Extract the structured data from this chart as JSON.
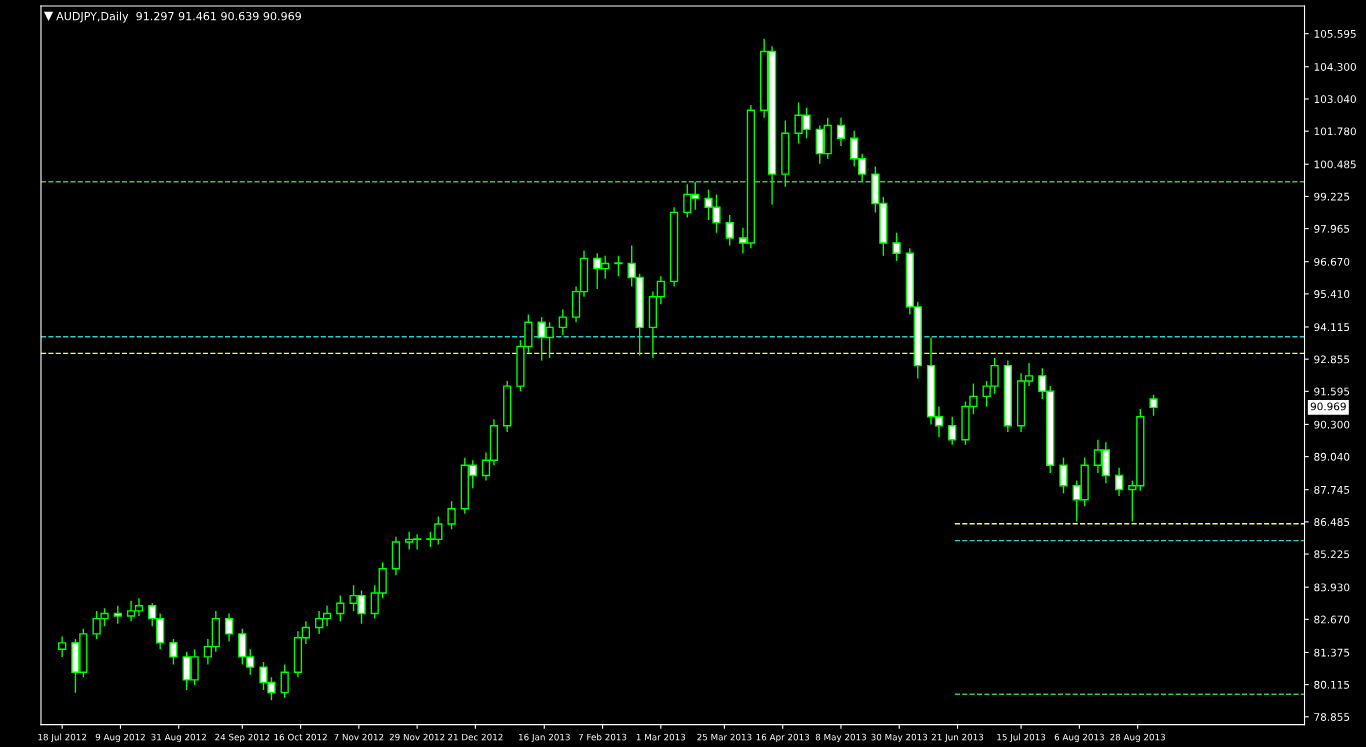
{
  "chart_data": {
    "type": "candlestick",
    "title": "AUDJPY,Daily  91.297 91.461 90.639 90.969",
    "color": "#00ff00",
    "x": [
      "2012-07-18",
      "2012-07-23",
      "2012-07-26",
      "2012-07-31",
      "2012-08-03",
      "2012-08-08",
      "2012-08-13",
      "2012-08-16",
      "2012-08-21",
      "2012-08-24",
      "2012-08-29",
      "2012-09-03",
      "2012-09-06",
      "2012-09-11",
      "2012-09-14",
      "2012-09-19",
      "2012-09-24",
      "2012-09-27",
      "2012-10-02",
      "2012-10-05",
      "2012-10-10",
      "2012-10-15",
      "2012-10-18",
      "2012-10-23",
      "2012-10-26",
      "2012-10-31",
      "2012-11-05",
      "2012-11-08",
      "2012-11-13",
      "2012-11-16",
      "2012-11-21",
      "2012-11-26",
      "2012-11-29",
      "2012-12-04",
      "2012-12-07",
      "2012-12-12",
      "2012-12-17",
      "2012-12-20",
      "2012-12-25",
      "2012-12-28",
      "2013-01-02",
      "2013-01-07",
      "2013-01-10",
      "2013-01-15",
      "2013-01-18",
      "2013-01-23",
      "2013-01-28",
      "2013-01-31",
      "2013-02-05",
      "2013-02-08",
      "2013-02-13",
      "2013-02-18",
      "2013-02-21",
      "2013-02-26",
      "2013-03-01",
      "2013-03-06",
      "2013-03-11",
      "2013-03-14",
      "2013-03-19",
      "2013-03-22",
      "2013-03-27",
      "2013-04-01",
      "2013-04-04",
      "2013-04-09",
      "2013-04-12",
      "2013-04-17",
      "2013-04-22",
      "2013-04-25",
      "2013-04-30",
      "2013-05-03",
      "2013-05-08",
      "2013-05-13",
      "2013-05-16",
      "2013-05-21",
      "2013-05-24",
      "2013-05-29",
      "2013-06-03",
      "2013-06-06",
      "2013-06-11",
      "2013-06-14",
      "2013-06-19",
      "2013-06-24",
      "2013-06-27",
      "2013-07-02",
      "2013-07-05",
      "2013-07-10",
      "2013-07-15",
      "2013-07-18",
      "2013-07-23",
      "2013-07-26",
      "2013-07-31",
      "2013-08-05",
      "2013-08-08",
      "2013-08-13",
      "2013-08-16",
      "2013-08-21",
      "2013-08-26",
      "2013-08-29",
      "2013-09-03"
    ],
    "ohlc": [
      [
        81.5,
        82.0,
        81.2,
        81.75
      ],
      [
        81.75,
        81.9,
        79.8,
        80.6
      ],
      [
        80.6,
        82.3,
        80.4,
        82.1
      ],
      [
        82.1,
        83.0,
        81.9,
        82.7
      ],
      [
        82.7,
        83.1,
        82.4,
        82.9
      ],
      [
        82.9,
        83.2,
        82.5,
        82.8
      ],
      [
        82.8,
        83.4,
        82.6,
        83.0
      ],
      [
        83.0,
        83.5,
        82.8,
        83.2
      ],
      [
        83.2,
        83.3,
        82.4,
        82.7
      ],
      [
        82.7,
        82.9,
        81.5,
        81.75
      ],
      [
        81.75,
        81.9,
        80.9,
        81.2
      ],
      [
        81.2,
        81.4,
        79.9,
        80.3
      ],
      [
        80.3,
        81.5,
        80.1,
        81.2
      ],
      [
        81.2,
        81.9,
        80.9,
        81.6
      ],
      [
        81.6,
        83.0,
        81.4,
        82.7
      ],
      [
        82.7,
        82.9,
        81.8,
        82.1
      ],
      [
        82.1,
        82.3,
        80.9,
        81.2
      ],
      [
        81.2,
        81.5,
        80.5,
        80.8
      ],
      [
        80.8,
        81.0,
        79.9,
        80.2
      ],
      [
        80.2,
        80.4,
        79.5,
        79.8
      ],
      [
        79.8,
        80.9,
        79.6,
        80.6
      ],
      [
        80.6,
        82.2,
        80.4,
        81.95
      ],
      [
        81.95,
        82.6,
        81.7,
        82.35
      ],
      [
        82.35,
        83.0,
        82.1,
        82.7
      ],
      [
        82.7,
        83.2,
        82.4,
        82.9
      ],
      [
        82.9,
        83.6,
        82.6,
        83.3
      ],
      [
        83.3,
        84.0,
        83.0,
        83.6
      ],
      [
        83.6,
        83.8,
        82.5,
        82.9
      ],
      [
        82.9,
        84.0,
        82.7,
        83.7
      ],
      [
        83.7,
        84.9,
        83.5,
        84.65
      ],
      [
        84.65,
        85.9,
        84.4,
        85.7
      ],
      [
        85.7,
        86.1,
        85.4,
        85.8
      ],
      [
        85.8,
        86.0,
        85.4,
        85.8
      ],
      [
        85.8,
        86.1,
        85.5,
        85.8
      ],
      [
        85.8,
        86.7,
        85.6,
        86.4
      ],
      [
        86.4,
        87.3,
        86.2,
        87.0
      ],
      [
        87.0,
        89.0,
        86.8,
        88.7
      ],
      [
        88.7,
        88.9,
        87.8,
        88.3
      ],
      [
        88.3,
        89.2,
        88.1,
        88.9
      ],
      [
        88.9,
        90.5,
        88.7,
        90.25
      ],
      [
        90.25,
        92.0,
        90.0,
        91.8
      ],
      [
        91.8,
        93.6,
        91.6,
        93.35
      ],
      [
        93.35,
        94.6,
        93.1,
        94.3
      ],
      [
        94.3,
        94.5,
        92.8,
        93.7
      ],
      [
        93.7,
        94.3,
        92.9,
        94.1
      ],
      [
        94.1,
        94.8,
        93.8,
        94.5
      ],
      [
        94.5,
        95.7,
        94.3,
        95.5
      ],
      [
        95.5,
        97.1,
        95.3,
        96.8
      ],
      [
        96.8,
        97.0,
        95.6,
        96.4
      ],
      [
        96.4,
        96.9,
        96.0,
        96.6
      ],
      [
        96.6,
        96.9,
        96.1,
        96.6
      ],
      [
        96.6,
        97.3,
        95.7,
        96.05
      ],
      [
        96.05,
        96.2,
        93.0,
        94.1
      ],
      [
        94.1,
        95.5,
        92.9,
        95.3
      ],
      [
        95.3,
        96.1,
        95.0,
        95.9
      ],
      [
        95.9,
        98.8,
        95.7,
        98.6
      ],
      [
        98.6,
        99.7,
        98.4,
        99.3
      ],
      [
        99.3,
        99.8,
        98.7,
        99.15
      ],
      [
        99.15,
        99.5,
        98.3,
        98.8
      ],
      [
        98.8,
        99.3,
        97.8,
        98.2
      ],
      [
        98.2,
        98.5,
        97.3,
        97.6
      ],
      [
        97.6,
        98.0,
        97.0,
        97.4
      ],
      [
        97.4,
        102.8,
        97.2,
        102.6
      ],
      [
        102.6,
        105.4,
        102.3,
        104.9
      ],
      [
        104.9,
        105.1,
        98.9,
        100.1
      ],
      [
        100.1,
        102.2,
        99.6,
        101.7
      ],
      [
        101.7,
        102.9,
        101.3,
        102.4
      ],
      [
        102.4,
        102.7,
        101.5,
        101.85
      ],
      [
        101.85,
        102.0,
        100.5,
        100.9
      ],
      [
        100.9,
        102.3,
        100.7,
        102.0
      ],
      [
        102.0,
        102.3,
        101.2,
        101.5
      ],
      [
        101.5,
        101.8,
        100.4,
        100.7
      ],
      [
        100.7,
        100.9,
        99.8,
        100.1
      ],
      [
        100.1,
        100.4,
        98.6,
        98.95
      ],
      [
        98.95,
        99.2,
        96.9,
        97.4
      ],
      [
        97.4,
        97.8,
        96.7,
        97.0
      ],
      [
        97.0,
        97.2,
        94.6,
        94.9
      ],
      [
        94.9,
        95.1,
        92.1,
        92.6
      ],
      [
        92.6,
        93.7,
        90.3,
        90.6
      ],
      [
        90.6,
        91.0,
        89.8,
        90.25
      ],
      [
        90.25,
        90.6,
        89.5,
        89.7
      ],
      [
        89.7,
        91.2,
        89.5,
        91.0
      ],
      [
        91.0,
        91.9,
        90.7,
        91.4
      ],
      [
        91.4,
        92.0,
        91.0,
        91.8
      ],
      [
        91.8,
        92.9,
        91.5,
        92.6
      ],
      [
        92.6,
        92.8,
        90.0,
        90.25
      ],
      [
        90.25,
        92.3,
        90.0,
        92.0
      ],
      [
        92.0,
        92.7,
        91.8,
        92.2
      ],
      [
        92.2,
        92.5,
        91.3,
        91.6
      ],
      [
        91.6,
        91.8,
        88.4,
        88.7
      ],
      [
        88.7,
        89.0,
        87.6,
        87.9
      ],
      [
        87.9,
        88.1,
        86.5,
        87.35
      ],
      [
        87.35,
        89.0,
        87.1,
        88.7
      ],
      [
        88.7,
        89.7,
        88.4,
        89.3
      ],
      [
        89.3,
        89.6,
        88.0,
        88.3
      ],
      [
        88.3,
        88.6,
        87.5,
        87.75
      ],
      [
        87.75,
        88.1,
        86.5,
        87.9
      ],
      [
        87.9,
        90.9,
        87.7,
        90.6
      ],
      [
        91.297,
        91.461,
        90.639,
        90.969
      ]
    ],
    "series": [
      {
        "type": "line",
        "color": "#ffff33",
        "line_style": "dashed",
        "x": [
          "2013-06-20",
          "2013-10-30"
        ],
        "values": [
          86.41,
          86.41
        ]
      },
      {
        "type": "line",
        "color": "#33cccc",
        "line_style": "dashed",
        "x": [
          "2013-06-20",
          "2013-10-30"
        ],
        "values": [
          85.75,
          85.75
        ]
      },
      {
        "type": "line",
        "color": "#33cc33",
        "line_style": "dashed",
        "x": [
          "2013-06-20",
          "2013-10-30"
        ],
        "values": [
          79.74,
          79.74
        ]
      }
    ],
    "ref_lines": [
      {
        "axis": "y",
        "value": 99.8,
        "color": "#33cc33",
        "line_style": "dashed"
      },
      {
        "axis": "y",
        "value": 93.73,
        "color": "#33cccc",
        "line_style": "dashed"
      },
      {
        "axis": "y",
        "value": 93.08,
        "color": "#ffff33",
        "line_style": "dashed"
      }
    ],
    "annotations": [
      "90.969"
    ],
    "xlim": [
      "2012-07-10",
      "2013-10-30"
    ],
    "xticks": [
      {
        "value": "2012-07-18",
        "label": "18 Jul 2012"
      },
      {
        "value": "2012-08-09",
        "label": "9 Aug 2012"
      },
      {
        "value": "2012-08-31",
        "label": "31 Aug 2012"
      },
      {
        "value": "2012-09-24",
        "label": "24 Sep 2012"
      },
      {
        "value": "2012-10-16",
        "label": "16 Oct 2012"
      },
      {
        "value": "2012-11-07",
        "label": "7 Nov 2012"
      },
      {
        "value": "2012-11-29",
        "label": "29 Nov 2012"
      },
      {
        "value": "2012-12-21",
        "label": "21 Dec 2012"
      },
      {
        "value": "2013-01-16",
        "label": "16 Jan 2013"
      },
      {
        "value": "2013-02-07",
        "label": "7 Feb 2013"
      },
      {
        "value": "2013-03-01",
        "label": "1 Mar 2013"
      },
      {
        "value": "2013-03-25",
        "label": "25 Mar 2013"
      },
      {
        "value": "2013-04-16",
        "label": "16 Apr 2013"
      },
      {
        "value": "2013-05-08",
        "label": "8 May 2013"
      },
      {
        "value": "2013-05-30",
        "label": "30 May 2013"
      },
      {
        "value": "2013-06-21",
        "label": "21 Jun 2013"
      },
      {
        "value": "2013-07-15",
        "label": "15 Jul 2013"
      },
      {
        "value": "2013-08-06",
        "label": "6 Aug 2013"
      },
      {
        "value": "2013-08-28",
        "label": "28 Aug 2013"
      }
    ],
    "ylim": [
      78.55,
      106.68
    ],
    "yticks": [
      105.595,
      {
        "value": 104.3,
        "label": "104.300"
      },
      {
        "value": 103.04,
        "label": "103.040"
      },
      {
        "value": 101.78,
        "label": "101.780"
      },
      100.485,
      99.225,
      97.965,
      {
        "value": 96.67,
        "label": "96.670"
      },
      {
        "value": 95.41,
        "label": "95.410"
      },
      94.115,
      92.855,
      91.595,
      {
        "value": 90.3,
        "label": "90.300"
      },
      {
        "value": 89.04,
        "label": "89.040"
      },
      87.745,
      86.485,
      85.225,
      {
        "value": 83.93,
        "label": "83.930"
      },
      {
        "value": 82.67,
        "label": "82.670"
      },
      81.375,
      80.115,
      78.855
    ],
    "grid": false,
    "legend": false
  }
}
